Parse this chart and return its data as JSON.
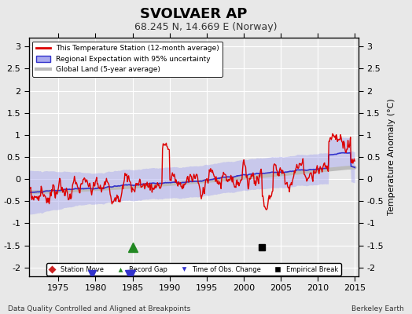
{
  "title": "SVOLVAER AP",
  "subtitle": "68.245 N, 14.669 E (Norway)",
  "ylabel": "Temperature Anomaly (°C)",
  "xlabel_note": "Data Quality Controlled and Aligned at Breakpoints",
  "credit": "Berkeley Earth",
  "xlim": [
    1971,
    2015.5
  ],
  "ylim": [
    -2.2,
    3.2
  ],
  "yticks": [
    -2,
    -1.5,
    -1,
    -0.5,
    0,
    0.5,
    1,
    1.5,
    2,
    2.5,
    3
  ],
  "xticks": [
    1975,
    1980,
    1985,
    1990,
    1995,
    2000,
    2005,
    2010,
    2015
  ],
  "station_move": [],
  "record_gap": [
    1985.0
  ],
  "time_obs_change": [
    1979.5,
    1984.5,
    1984.8
  ],
  "empirical_break": [
    2002.5
  ],
  "bg_color": "#e8e8e8",
  "plot_bg_color": "#e8e8e8",
  "red_color": "#dd0000",
  "blue_color": "#3333cc",
  "blue_fill_color": "#aaaaee",
  "gray_color": "#bbbbbb",
  "grid_color": "#ffffff"
}
